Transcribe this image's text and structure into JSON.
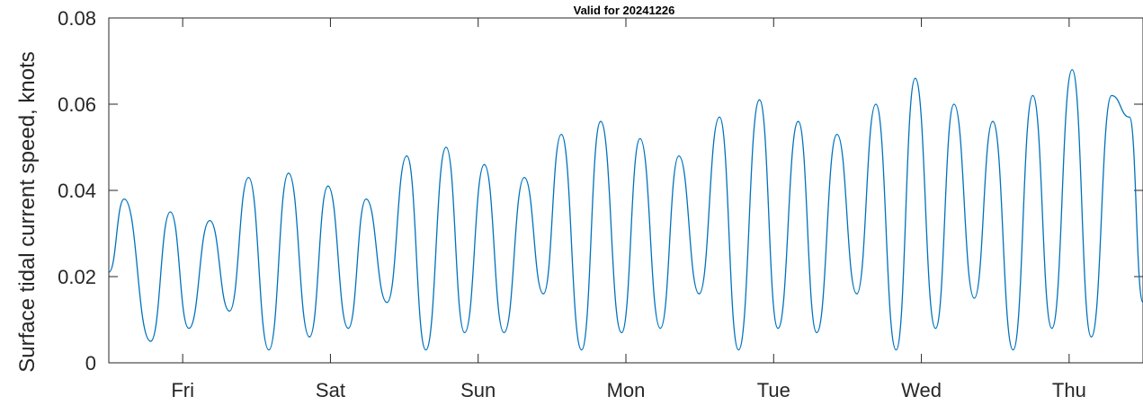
{
  "chart_data": {
    "type": "line",
    "title": "Valid for 20241226",
    "xlabel": "",
    "ylabel": "Surface tidal current speed, knots",
    "xlim": [
      0,
      168
    ],
    "ylim": [
      0,
      0.08
    ],
    "y_ticks": [
      0,
      0.02,
      0.04,
      0.06,
      0.08
    ],
    "y_tick_labels": [
      "0",
      "0.02",
      "0.04",
      "0.06",
      "0.08"
    ],
    "x_ticks": [
      {
        "label": "Fri",
        "x": 12
      },
      {
        "label": "Sat",
        "x": 36
      },
      {
        "label": "Sun",
        "x": 60
      },
      {
        "label": "Mon",
        "x": 84
      },
      {
        "label": "Tue",
        "x": 108
      },
      {
        "label": "Wed",
        "x": 132
      },
      {
        "label": "Thu",
        "x": 156
      }
    ],
    "grid": false,
    "series_color": "#0072bd",
    "series": [
      {
        "x": [
          0,
          2.5,
          6.8,
          10.0,
          13.0,
          16.4,
          19.6,
          22.7,
          26.0,
          29.2,
          32.6,
          35.6,
          38.9,
          41.8,
          45.2,
          48.4,
          51.5,
          54.8,
          57.8,
          61.0,
          64.2,
          67.5,
          70.6,
          73.5,
          76.8,
          79.9,
          83.3,
          86.3,
          89.6,
          92.6,
          95.9,
          99.2,
          102.3,
          105.7,
          108.7,
          112.0,
          115.0,
          118.3,
          121.5,
          124.6,
          127.9,
          131.0,
          134.3,
          137.3,
          140.6,
          143.6,
          146.9,
          150.1,
          153.2,
          156.5,
          159.6,
          162.9,
          165.8,
          168.0
        ],
        "y": [
          0.021,
          0.038,
          0.005,
          0.035,
          0.008,
          0.033,
          0.012,
          0.043,
          0.003,
          0.044,
          0.006,
          0.041,
          0.008,
          0.038,
          0.014,
          0.048,
          0.003,
          0.05,
          0.007,
          0.046,
          0.007,
          0.043,
          0.016,
          0.053,
          0.003,
          0.056,
          0.007,
          0.052,
          0.008,
          0.048,
          0.016,
          0.057,
          0.003,
          0.061,
          0.008,
          0.056,
          0.007,
          0.053,
          0.016,
          0.06,
          0.003,
          0.066,
          0.008,
          0.06,
          0.015,
          0.056,
          0.003,
          0.062,
          0.008,
          0.068,
          0.006,
          0.062,
          0.057,
          0.014
        ]
      }
    ]
  }
}
